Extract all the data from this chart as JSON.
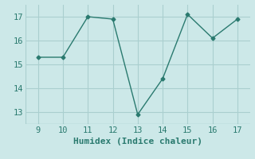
{
  "x": [
    9,
    10,
    11,
    12,
    13,
    14,
    15,
    16,
    17
  ],
  "y": [
    15.3,
    15.3,
    17.0,
    16.9,
    12.9,
    14.4,
    17.1,
    16.1,
    16.9
  ],
  "line_color": "#2a7a6f",
  "marker": "D",
  "marker_size": 2.5,
  "xlabel": "Humidex (Indice chaleur)",
  "xlim": [
    8.5,
    17.5
  ],
  "ylim": [
    12.5,
    17.5
  ],
  "xticks": [
    9,
    10,
    11,
    12,
    13,
    14,
    15,
    16,
    17
  ],
  "yticks": [
    13,
    14,
    15,
    16,
    17
  ],
  "background_color": "#cce8e8",
  "grid_color": "#aacfcf",
  "xlabel_fontsize": 8,
  "tick_fontsize": 7.5
}
